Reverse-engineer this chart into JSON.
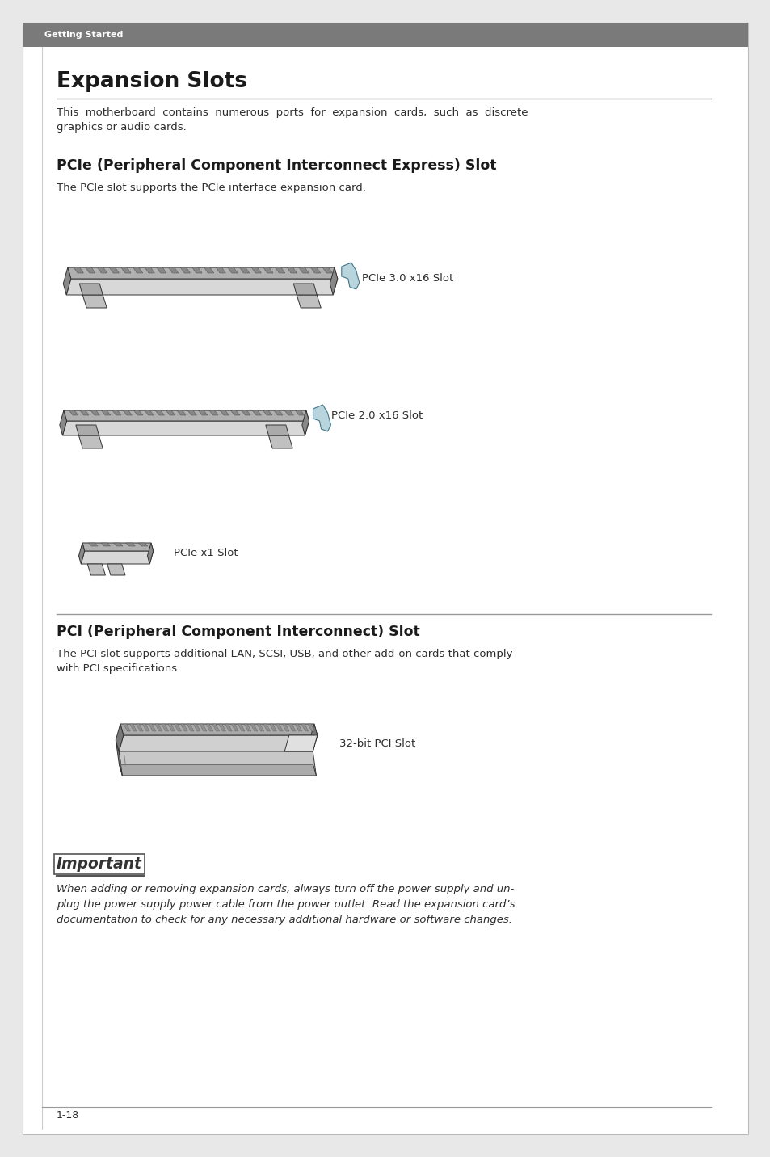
{
  "page_bg": "#ffffff",
  "outer_bg": "#e8e8e8",
  "header_bar_color": "#7a7a7a",
  "header_text": "Getting Started",
  "page_number": "1-18",
  "main_title": "Expansion Slots",
  "intro_text": "This  motherboard  contains  numerous  ports  for  expansion  cards,  such  as  discrete\ngraphics or audio cards.",
  "section1_title": "PCIe (Peripheral Component Interconnect Express) Slot",
  "section1_body": "The PCIe slot supports the PCIe interface expansion card.",
  "slot_labels": [
    "PCIe 3.0 x16 Slot",
    "PCIe 2.0 x16 Slot",
    "PCIe x1 Slot"
  ],
  "section2_title": "PCI (Peripheral Component Interconnect) Slot",
  "section2_body": "The PCI slot supports additional LAN, SCSI, USB, and other add-on cards that comply\nwith PCI specifications.",
  "pci_label": "32-bit PCI Slot",
  "important_label": "Important",
  "important_text": "When adding or removing expansion cards, always turn off the power supply and un-\nplug the power supply power cable from the power outlet. Read the expansion card’s\ndocumentation to check for any necessary additional hardware or software changes.",
  "text_color": "#2d2d2d",
  "title_color": "#1a1a1a",
  "line_color": "#999999"
}
